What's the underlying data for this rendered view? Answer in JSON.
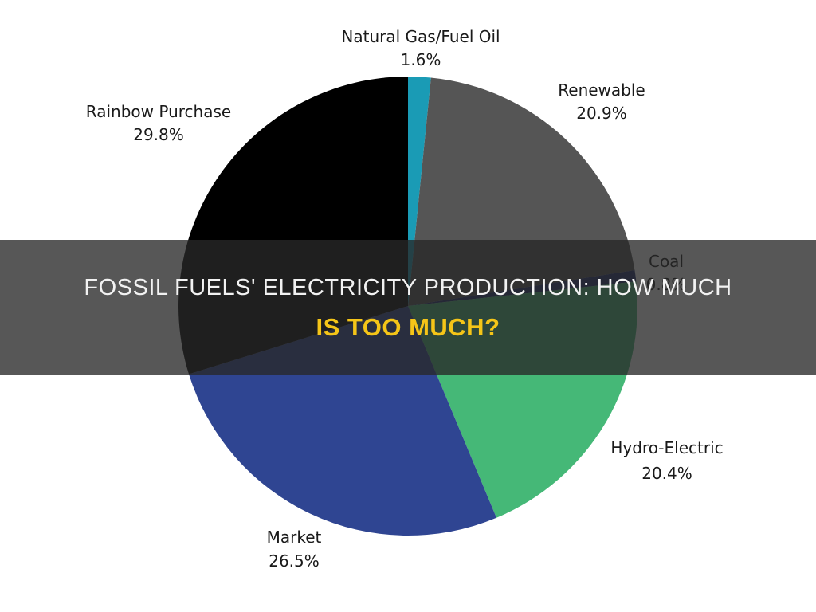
{
  "banner": {
    "title_main": "Fossil Fuels' Electricity Production: How Much",
    "title_accent": "Is Too Much?",
    "accent_color": "#f5c518"
  },
  "chart_data": {
    "type": "pie",
    "title": "",
    "start_angle_deg": 0,
    "direction": "clockwise",
    "slices": [
      {
        "label": "Natural Gas/Fuel Oil",
        "value_label": "1.6%",
        "value": 1.6,
        "color": "#1a9bb5"
      },
      {
        "label": "Renewable",
        "value_label": "20.9%",
        "value": 20.9,
        "color": "#555555"
      },
      {
        "label": "Coal",
        "value_label": "0.8%",
        "value": 0.8,
        "color": "#1b2a6b"
      },
      {
        "label": "Hydro-Electric",
        "value_label": "20.4%",
        "value": 20.4,
        "color": "#45b877"
      },
      {
        "label": "Market",
        "value_label": "26.5%",
        "value": 26.5,
        "color": "#2f4592"
      },
      {
        "label": "Rainbow Purchase",
        "value_label": "29.8%",
        "value": 29.8,
        "color": "#000000"
      }
    ]
  }
}
